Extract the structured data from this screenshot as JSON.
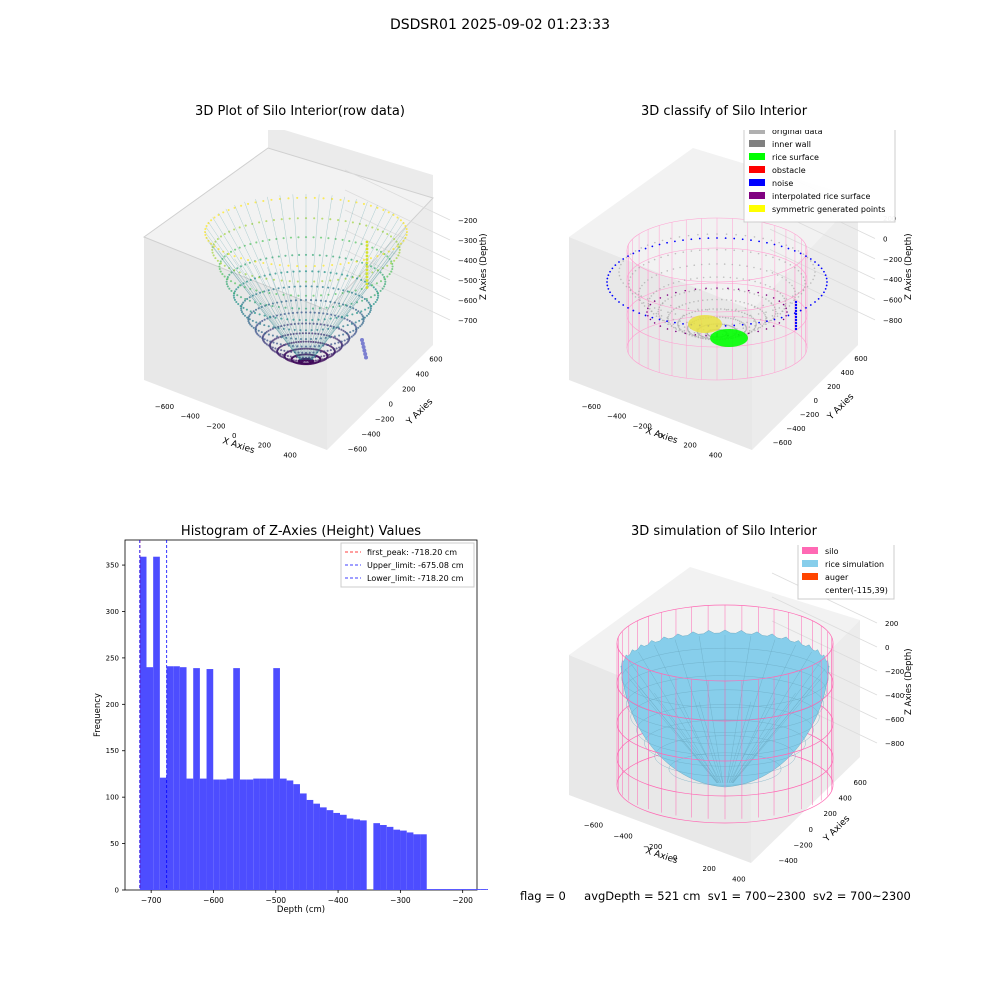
{
  "figure": {
    "title": "DSDSR01 2025-09-02 01:23:33",
    "footer": {
      "flag": "flag = 0",
      "avg_depth": "avgDepth = 521 cm",
      "sv1": "sv1 = 700~2300",
      "sv2": "sv2 = 700~2300"
    }
  },
  "colors": {
    "bar": "#4d4dff",
    "first_peak": "#ff0000",
    "upper_limit": "#0000ff",
    "lower_limit": "#0000ff",
    "grey": "#b0b0b0",
    "silo_pink": "#ff69b4",
    "rice_blue": "#87ceeb"
  },
  "chart_data": [
    {
      "type": "scatter3d",
      "title": "3D Plot of Silo Interior(row data)",
      "xlabel": "X Axies",
      "ylabel": "Y Axies",
      "zlabel": "Z Axies (Depth)",
      "x_ticks": [
        "−600",
        "−400",
        "−200",
        "0",
        "200",
        "400",
        "600"
      ],
      "y_ticks": [
        "−600",
        "−400",
        "−200",
        "0",
        "200",
        "400",
        "600"
      ],
      "z_ticks": [
        "−200",
        "−300",
        "−400",
        "−500",
        "−600",
        "−700"
      ],
      "colormap": "viridis",
      "z_range": [
        -760,
        -180
      ]
    },
    {
      "type": "scatter3d",
      "title": "3D classify of Silo Interior",
      "xlabel": "X Axies",
      "ylabel": "Y Axies",
      "zlabel": "Z Axies (Depth)",
      "x_ticks": [
        "−600",
        "−400",
        "−200",
        "0",
        "200",
        "400",
        "600"
      ],
      "y_ticks": [
        "−600",
        "−400",
        "−200",
        "0",
        "200",
        "400",
        "600"
      ],
      "z_ticks": [
        "200",
        "0",
        "−200",
        "−400",
        "−600",
        "−800"
      ],
      "legend_position": "top-right",
      "legend": [
        {
          "label": "original data",
          "color": "#b0b0b0"
        },
        {
          "label": "inner wall",
          "color": "#808080"
        },
        {
          "label": "rice surface",
          "color": "#00ff00"
        },
        {
          "label": "obstacle",
          "color": "#ff0000"
        },
        {
          "label": "noise",
          "color": "#0000ff"
        },
        {
          "label": "interpolated rice surface",
          "color": "#800080"
        },
        {
          "label": "symmetric generated points",
          "color": "#ffff00"
        }
      ]
    },
    {
      "type": "bar",
      "title": "Histogram of Z-Axies (Height) Values",
      "xlabel": "Depth (cm)",
      "ylabel": "Frequency",
      "xlim": [
        -742,
        -177
      ],
      "ylim": [
        0,
        377
      ],
      "x_ticks": [
        -700,
        -600,
        -500,
        -400,
        -300,
        -200
      ],
      "x_tick_labels": [
        "−700",
        "−600",
        "−500",
        "−400",
        "−300",
        "−200"
      ],
      "y_ticks": [
        0,
        50,
        100,
        150,
        200,
        250,
        300,
        350
      ],
      "bin_start": -718.2,
      "bin_width": 10.71,
      "values": [
        359,
        240,
        359,
        121,
        241,
        241,
        240,
        120,
        239,
        120,
        238,
        119,
        119,
        120,
        239,
        119,
        119,
        120,
        120,
        120,
        239,
        120,
        118,
        114,
        104,
        97,
        93,
        89,
        86,
        83,
        81,
        77,
        76,
        75,
        0,
        72,
        70,
        68,
        65,
        64,
        62,
        60,
        60,
        1,
        1,
        1,
        1,
        1,
        1,
        1,
        1,
        1,
        1,
        2
      ],
      "legend_position": "top-right",
      "vlines": [
        {
          "name": "first_peak: -718.20 cm",
          "x": -718.2,
          "color": "#ff0000"
        },
        {
          "name": "Upper_limit: -675.08 cm",
          "x": -675.08,
          "color": "#0000ff"
        },
        {
          "name": "Lower_limit: -718.20 cm",
          "x": -718.2,
          "color": "#0000ff"
        }
      ]
    },
    {
      "type": "surface3d",
      "title": "3D simulation of Silo Interior",
      "xlabel": "X Axies",
      "ylabel": "Y Axies",
      "zlabel": "Z Axies (Depth)",
      "x_ticks": [
        "−600",
        "−400",
        "−200",
        "0",
        "200",
        "400"
      ],
      "y_ticks": [
        "−400",
        "−200",
        "0",
        "200",
        "400",
        "600"
      ],
      "z_ticks": [
        "200",
        "0",
        "−200",
        "−400",
        "−600",
        "−800"
      ],
      "legend_position": "top-right",
      "legend": [
        {
          "label": "silo",
          "color": "#ff69b4"
        },
        {
          "label": "rice simulation",
          "color": "#87ceeb"
        },
        {
          "label": "auger",
          "color": "#ff4500"
        },
        {
          "label": "center(-115,39)",
          "color": ""
        }
      ]
    }
  ]
}
